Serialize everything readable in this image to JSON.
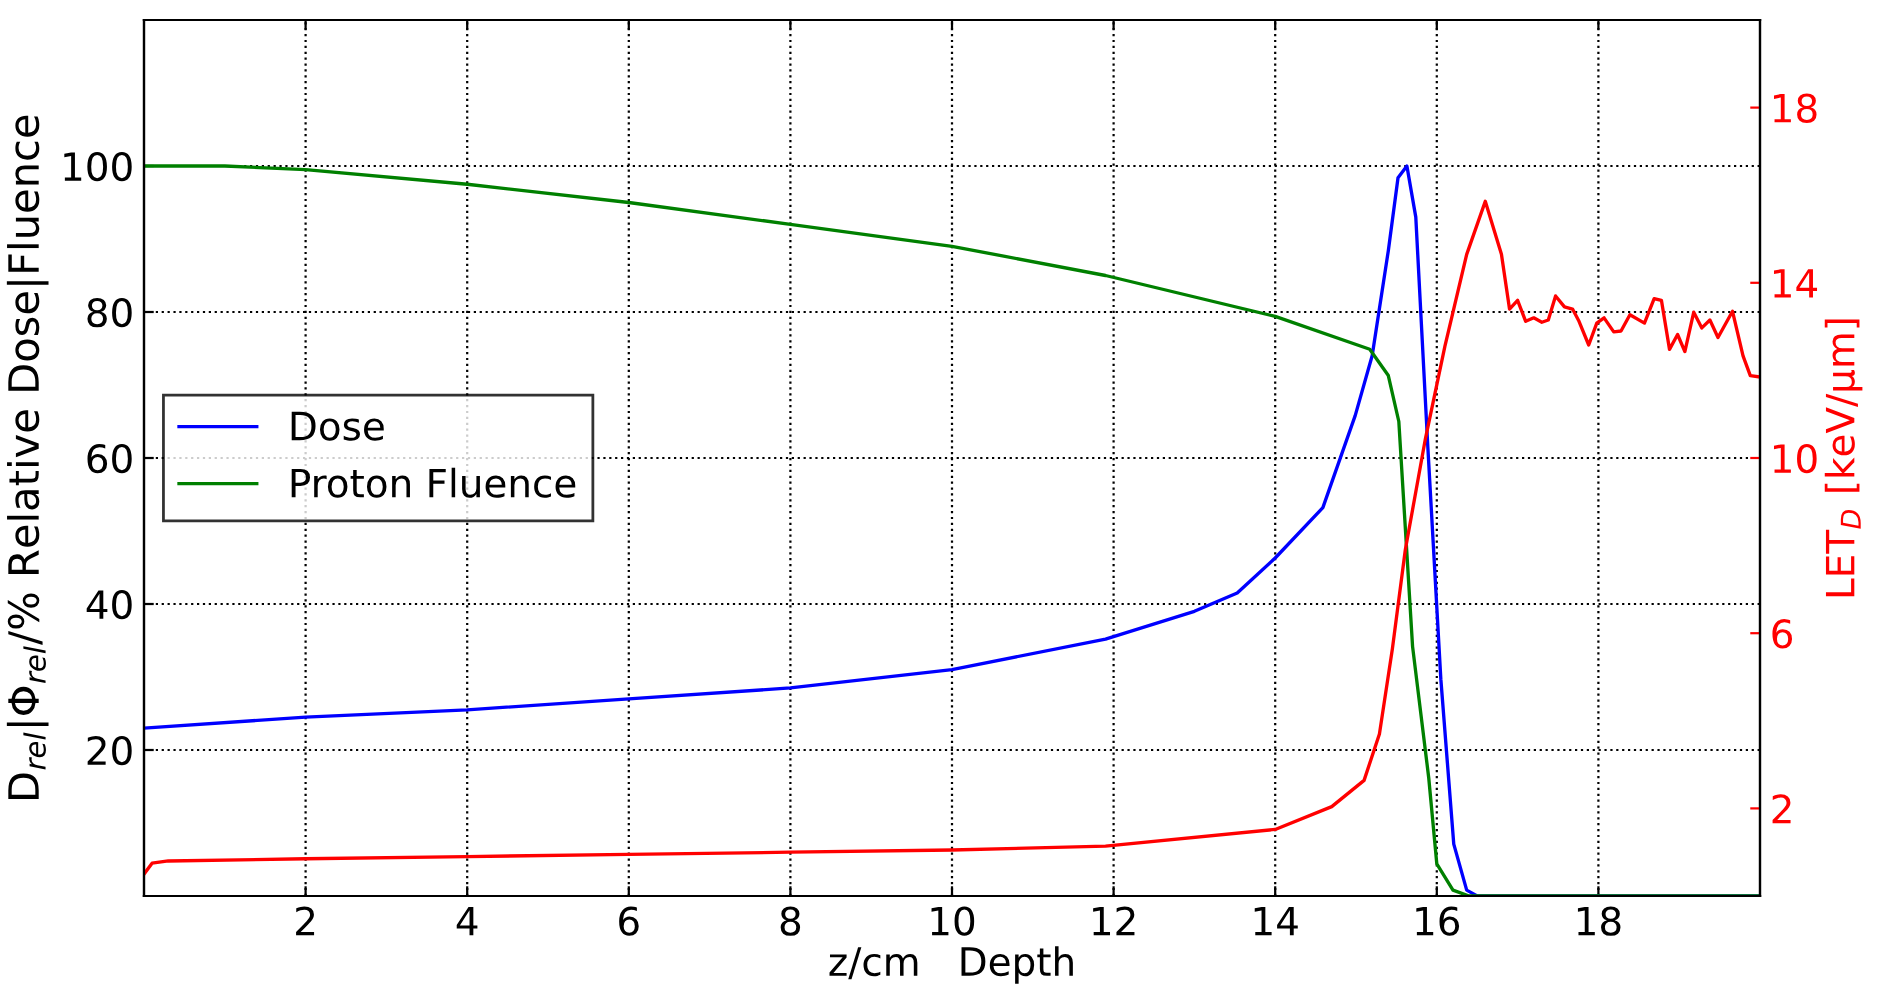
{
  "chart_data": {
    "type": "line",
    "xlabel": "z/cm   Depth",
    "ylabel": "D$_{rel}$|Φ$_{rel}$/% Relative Dose|Fluence",
    "y2label": "LET$_{D}$ [keV/μm]",
    "xlim": [
      0,
      20
    ],
    "xticks": [
      2,
      4,
      6,
      8,
      10,
      12,
      14,
      16,
      18
    ],
    "ylim": [
      0,
      120
    ],
    "yticks": [
      20,
      40,
      60,
      80,
      100
    ],
    "y2lim": [
      0,
      20
    ],
    "y2ticks": [
      2,
      6,
      10,
      14,
      18
    ],
    "grid": true,
    "legend": "left",
    "line_style": "solid",
    "marker": "none",
    "series": [
      {
        "name": "Dose",
        "color": "#0000ff",
        "x": [
          0,
          2,
          4,
          6,
          8,
          10,
          11.9,
          13,
          13.53,
          14.0,
          14.59,
          14.99,
          15.2,
          15.4,
          15.52,
          15.63,
          15.74,
          15.89,
          16.05,
          16.21,
          16.37,
          16.5,
          20
        ],
        "values": [
          23,
          24.5,
          25.5,
          27,
          28.5,
          31,
          35.2,
          39,
          41.5,
          46.3,
          53.2,
          65.8,
          74,
          88.4,
          98.4,
          100,
          93,
          61.3,
          29.7,
          7.1,
          0.8,
          0,
          0
        ]
      },
      {
        "name": "Proton Fluence",
        "color": "#008000",
        "x": [
          0,
          1,
          2,
          4,
          6,
          8,
          10,
          11.9,
          14.0,
          15.17,
          15.4,
          15.53,
          15.6,
          15.7,
          15.9,
          16.0,
          16.2,
          16.4,
          20
        ],
        "values": [
          100,
          100,
          99.5,
          97.5,
          95,
          92,
          89,
          85,
          79.4,
          74.9,
          71.3,
          65,
          52.3,
          34.2,
          16.2,
          4.4,
          0.8,
          0,
          0
        ]
      },
      {
        "color": "#ff0000",
        "axis": "y2",
        "x": [
          0,
          0.1,
          0.3,
          2,
          4,
          6,
          8,
          10,
          11.9,
          14.0,
          14.7,
          15.1,
          15.29,
          15.45,
          15.61,
          15.86,
          16.1,
          16.37,
          16.6,
          16.8,
          16.9,
          17.0,
          17.1,
          17.2,
          17.3,
          17.38,
          17.47,
          17.58,
          17.68,
          17.76,
          17.88,
          17.98,
          18.07,
          18.19,
          18.28,
          18.39,
          18.57,
          18.69,
          18.78,
          18.88,
          18.98,
          19.07,
          19.18,
          19.28,
          19.38,
          19.48,
          19.66,
          19.79,
          19.88,
          20
        ],
        "values": [
          0.5,
          0.75,
          0.8,
          0.85,
          0.9,
          0.95,
          1.0,
          1.05,
          1.14,
          1.52,
          2.04,
          2.64,
          3.7,
          5.64,
          7.9,
          10.45,
          12.55,
          14.65,
          15.86,
          14.65,
          13.4,
          13.6,
          13.12,
          13.2,
          13.1,
          13.15,
          13.7,
          13.45,
          13.4,
          13.12,
          12.58,
          13.08,
          13.2,
          12.88,
          12.9,
          13.27,
          13.08,
          13.64,
          13.6,
          12.48,
          12.82,
          12.43,
          13.33,
          12.97,
          13.15,
          12.75,
          13.35,
          12.33,
          11.88,
          11.85
        ]
      }
    ]
  }
}
